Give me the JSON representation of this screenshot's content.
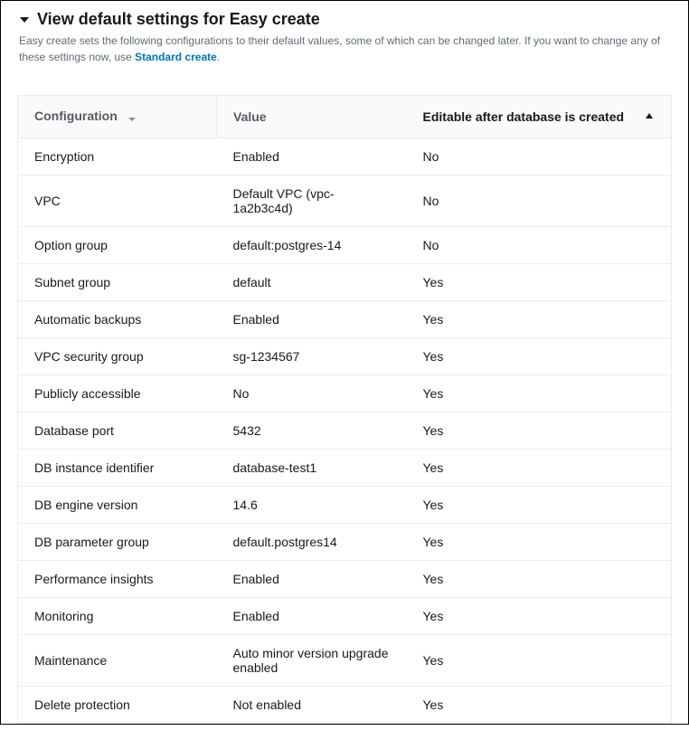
{
  "header": {
    "title": "View default settings for Easy create",
    "description_pre": "Easy create sets the following configurations to their default values, some of which can be changed later. If you want to change any of these settings now, use ",
    "link_text": "Standard create",
    "description_post": "."
  },
  "table": {
    "columns": {
      "config": "Configuration",
      "value": "Value",
      "editable": "Editable after database is created"
    },
    "sort": {
      "column": "editable",
      "direction": "asc"
    },
    "rows": [
      {
        "config": "Encryption",
        "value": "Enabled",
        "editable": "No"
      },
      {
        "config": "VPC",
        "value": "Default VPC (vpc-1a2b3c4d)",
        "editable": "No"
      },
      {
        "config": "Option group",
        "value": "default:postgres-14",
        "editable": "No"
      },
      {
        "config": "Subnet group",
        "value": "default",
        "editable": "Yes"
      },
      {
        "config": "Automatic backups",
        "value": "Enabled",
        "editable": "Yes"
      },
      {
        "config": "VPC security group",
        "value": "sg-1234567",
        "editable": "Yes"
      },
      {
        "config": "Publicly accessible",
        "value": "No",
        "editable": "Yes"
      },
      {
        "config": "Database port",
        "value": "5432",
        "editable": "Yes"
      },
      {
        "config": "DB instance identifier",
        "value": "database-test1",
        "editable": "Yes"
      },
      {
        "config": "DB engine version",
        "value": "14.6",
        "editable": "Yes"
      },
      {
        "config": "DB parameter group",
        "value": "default.postgres14",
        "editable": "Yes"
      },
      {
        "config": "Performance insights",
        "value": "Enabled",
        "editable": "Yes"
      },
      {
        "config": "Monitoring",
        "value": "Enabled",
        "editable": "Yes"
      },
      {
        "config": "Maintenance",
        "value": "Auto minor version upgrade enabled",
        "editable": "Yes"
      },
      {
        "config": "Delete protection",
        "value": "Not enabled",
        "editable": "Yes"
      }
    ]
  },
  "colors": {
    "link": "#0073bb",
    "text": "#16191f",
    "muted": "#5f6b7a",
    "header_text": "#545b64",
    "border": "#eaeded",
    "header_bg": "#fafafa"
  }
}
